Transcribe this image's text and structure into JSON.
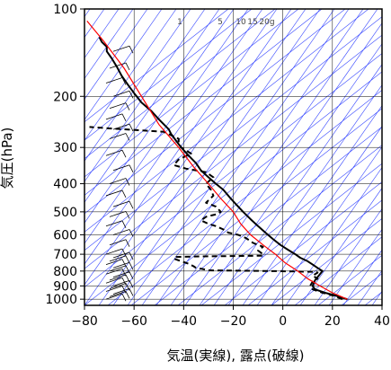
{
  "chart_data": {
    "type": "line",
    "xlabel": "気温(実線), 露点(破線)",
    "ylabel": "気圧(hPa)",
    "xlim": [
      -80,
      40
    ],
    "ylim": [
      1050,
      100
    ],
    "y_scale": "log",
    "grid": true,
    "x_ticks": [
      -80,
      -60,
      -40,
      -20,
      0,
      20,
      40
    ],
    "y_ticks": [
      100,
      200,
      300,
      400,
      500,
      600,
      700,
      800,
      900,
      1000
    ],
    "mixing_ratio_labels": [
      "1",
      "5",
      "10",
      "15",
      "20g"
    ],
    "colors": {
      "temperature": "#000000",
      "dewpoint": "#000000",
      "parcel": "#ff0000",
      "adiabats": "#3344ff",
      "grid": "#000000"
    },
    "series": [
      {
        "key": "temperature",
        "style": "solid",
        "points": [
          [
            26,
            1000
          ],
          [
            21,
            970
          ],
          [
            17,
            950
          ],
          [
            13,
            925
          ],
          [
            12,
            900
          ],
          [
            13,
            860
          ],
          [
            15,
            820
          ],
          [
            16,
            800
          ],
          [
            14,
            780
          ],
          [
            12,
            760
          ],
          [
            10,
            740
          ],
          [
            7,
            720
          ],
          [
            5,
            700
          ],
          [
            2,
            675
          ],
          [
            -1,
            650
          ],
          [
            -4,
            620
          ],
          [
            -7,
            590
          ],
          [
            -10,
            560
          ],
          [
            -13,
            530
          ],
          [
            -16,
            500
          ],
          [
            -19,
            470
          ],
          [
            -21,
            450
          ],
          [
            -24,
            420
          ],
          [
            -27,
            400
          ],
          [
            -30,
            380
          ],
          [
            -33,
            360
          ],
          [
            -35,
            340
          ],
          [
            -38,
            320
          ],
          [
            -41,
            300
          ],
          [
            -43,
            285
          ],
          [
            -45,
            270
          ],
          [
            -46,
            260
          ],
          [
            -50,
            240
          ],
          [
            -53,
            225
          ],
          [
            -57,
            210
          ],
          [
            -60,
            195
          ],
          [
            -62,
            185
          ],
          [
            -65,
            170
          ],
          [
            -67,
            158
          ],
          [
            -69,
            148
          ],
          [
            -71,
            140
          ],
          [
            -71,
            135
          ],
          [
            -73,
            130
          ],
          [
            -74,
            125
          ]
        ]
      },
      {
        "key": "dewpoint",
        "style": "dashed",
        "points": [
          [
            24,
            1000
          ],
          [
            20,
            970
          ],
          [
            16,
            950
          ],
          [
            12,
            925
          ],
          [
            11,
            900
          ],
          [
            12,
            870
          ],
          [
            14,
            850
          ],
          [
            12,
            830
          ],
          [
            14,
            810
          ],
          [
            13,
            805
          ],
          [
            -5,
            800
          ],
          [
            -30,
            795
          ],
          [
            -33,
            785
          ],
          [
            -35,
            780
          ],
          [
            -36,
            770
          ],
          [
            -38,
            755
          ],
          [
            -42,
            735
          ],
          [
            -44,
            725
          ],
          [
            -43,
            715
          ],
          [
            -33,
            712
          ],
          [
            -20,
            710
          ],
          [
            -8,
            708
          ],
          [
            -8,
            700
          ],
          [
            -10,
            680
          ],
          [
            -8,
            660
          ],
          [
            -12,
            640
          ],
          [
            -15,
            615
          ],
          [
            -18,
            600
          ],
          [
            -22,
            590
          ],
          [
            -24,
            575
          ],
          [
            -27,
            560
          ],
          [
            -30,
            550
          ],
          [
            -33,
            535
          ],
          [
            -31,
            520
          ],
          [
            -27,
            510
          ],
          [
            -25,
            500
          ],
          [
            -27,
            480
          ],
          [
            -31,
            465
          ],
          [
            -28,
            440
          ],
          [
            -29,
            420
          ],
          [
            -31,
            400
          ],
          [
            -28,
            380
          ],
          [
            -31,
            365
          ],
          [
            -39,
            355
          ],
          [
            -44,
            345
          ],
          [
            -42,
            330
          ],
          [
            -37,
            315
          ],
          [
            -41,
            300
          ],
          [
            -42,
            290
          ],
          [
            -42,
            280
          ],
          [
            -48,
            265
          ],
          [
            -57,
            262
          ],
          [
            -70,
            258
          ],
          [
            -75,
            256
          ],
          [
            -78,
            255
          ]
        ]
      },
      {
        "key": "parcel",
        "style": "solid",
        "points": [
          [
            26,
            1000
          ],
          [
            20,
            950
          ],
          [
            15,
            900
          ],
          [
            10,
            850
          ],
          [
            6,
            800
          ],
          [
            1,
            750
          ],
          [
            -3,
            700
          ],
          [
            -8,
            650
          ],
          [
            -13,
            600
          ],
          [
            -17,
            550
          ],
          [
            -20,
            500
          ],
          [
            -25,
            450
          ],
          [
            -30,
            400
          ],
          [
            -36,
            350
          ],
          [
            -42,
            300
          ],
          [
            -50,
            250
          ],
          [
            -57,
            200
          ],
          [
            -64,
            160
          ],
          [
            -72,
            130
          ],
          [
            -79,
            110
          ]
        ]
      }
    ]
  }
}
